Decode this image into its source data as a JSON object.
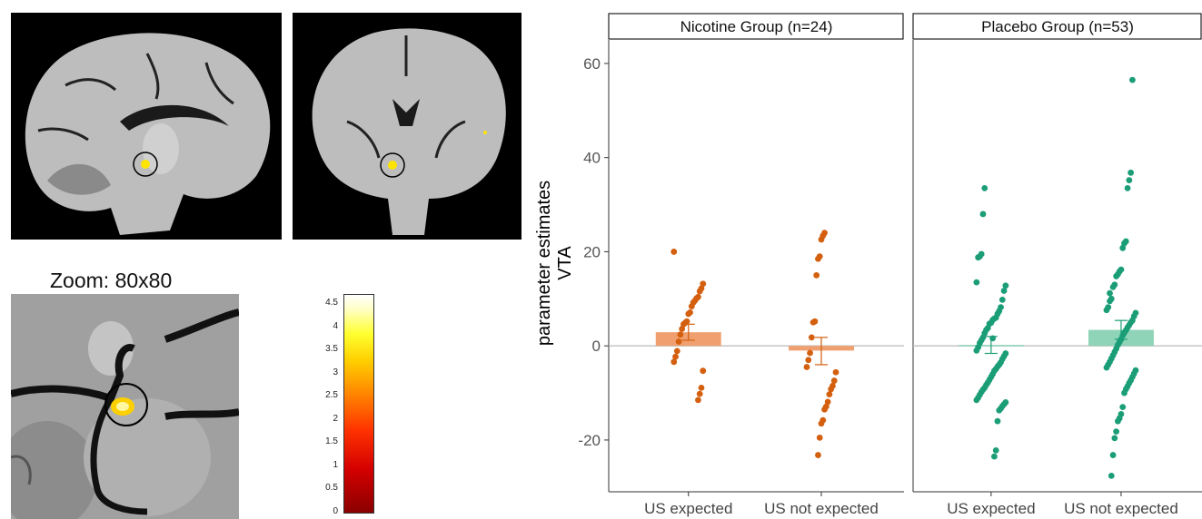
{
  "zoom_title": "Zoom: 80x80",
  "colorbar": {
    "ticks": [
      "4.5",
      "4",
      "3.5",
      "3",
      "2.5",
      "2",
      "1.5",
      "1",
      "0.5",
      "0"
    ],
    "min": 0,
    "max": 4.7
  },
  "colors": {
    "nicotine_points": "#d35f0f",
    "nicotine_bar": "#f0a070",
    "placebo_points": "#1b9e77",
    "placebo_bar": "#8fd4b8",
    "overlay": "#ffe400"
  },
  "chart_data": {
    "type": "scatter",
    "ylabel": [
      "parameter estimates",
      "VTA"
    ],
    "ylim": [
      -31,
      65
    ],
    "yticks": [
      -20,
      0,
      20,
      40,
      60
    ],
    "categories": [
      "US expected",
      "US not expected"
    ],
    "facets": [
      {
        "name": "Nicotine Group (n=24)",
        "groups": [
          {
            "category": "US expected",
            "mean": 2.9,
            "se_low": 1.2,
            "se_high": 4.6,
            "points": [
              20,
              13.2,
              12.2,
              11.6,
              10.4,
              10.1,
              9.6,
              9.2,
              8.4,
              7.1,
              6.8,
              5.2,
              4.9,
              4.6,
              3.6,
              2.4,
              0.9,
              -1.1,
              -2.3,
              -3.4,
              -5.3,
              -8.9,
              -10.2,
              -11.5
            ]
          },
          {
            "category": "US not expected",
            "mean": -1.0,
            "se_low": -4.0,
            "se_high": 1.8,
            "points": [
              24,
              23.4,
              22.6,
              19,
              18.5,
              15,
              5.2,
              5.0,
              1.8,
              -1.5,
              -3.0,
              -4.5,
              -5.6,
              -7.4,
              -8.5,
              -9.2,
              -10.3,
              -11.9,
              -12.9,
              -13.5,
              -15.8,
              -16.5,
              -19.5,
              -23.2
            ]
          }
        ]
      },
      {
        "name": "Placebo Group (n=53)",
        "groups": [
          {
            "category": "US expected",
            "mean": 0.2,
            "se_low": -1.6,
            "se_high": 2.0,
            "points": [
              33.5,
              28,
              19.5,
              19,
              18.8,
              13.5,
              12.8,
              11.7,
              9.8,
              8.2,
              7.4,
              6.8,
              6.0,
              5.8,
              5.5,
              4.9,
              4.7,
              3.8,
              3.4,
              2.7,
              1.8,
              1.2,
              0.6,
              -0.3,
              -1.0,
              -1.6,
              -2.2,
              -2.8,
              -3.5,
              -4.0,
              -4.4,
              -4.9,
              -5.3,
              -6.0,
              -6.6,
              -7.2,
              -7.8,
              -8.3,
              -8.9,
              -9.3,
              -9.8,
              -10.4,
              -11.0,
              -11.5,
              -12.0,
              -12.4,
              -12.8,
              -13.3,
              -13.7,
              -16,
              -22.2,
              -23.5,
              1.6
            ]
          },
          {
            "category": "US not expected",
            "mean": 3.4,
            "se_low": 1.4,
            "se_high": 5.4,
            "points": [
              56.5,
              36.8,
              35.2,
              33.5,
              22.2,
              21.8,
              20.8,
              16.2,
              15.8,
              15.2,
              14.8,
              13.0,
              12.5,
              10.0,
              9.5,
              8.2,
              7.6,
              7.0,
              6.3,
              5.4,
              5.0,
              4.4,
              3.9,
              3.3,
              2.8,
              2.2,
              1.4,
              0.8,
              0.2,
              -0.6,
              -1.3,
              -2.0,
              -2.7,
              -3.4,
              -4.0,
              -4.6,
              -5.2,
              -5.9,
              -6.6,
              -7.3,
              -7.9,
              -8.6,
              -9.2,
              -10.0,
              -13,
              -14.5,
              -15.4,
              -16,
              -18.2,
              -19.6,
              -23.2,
              -27.6,
              11.2
            ]
          }
        ]
      }
    ]
  }
}
